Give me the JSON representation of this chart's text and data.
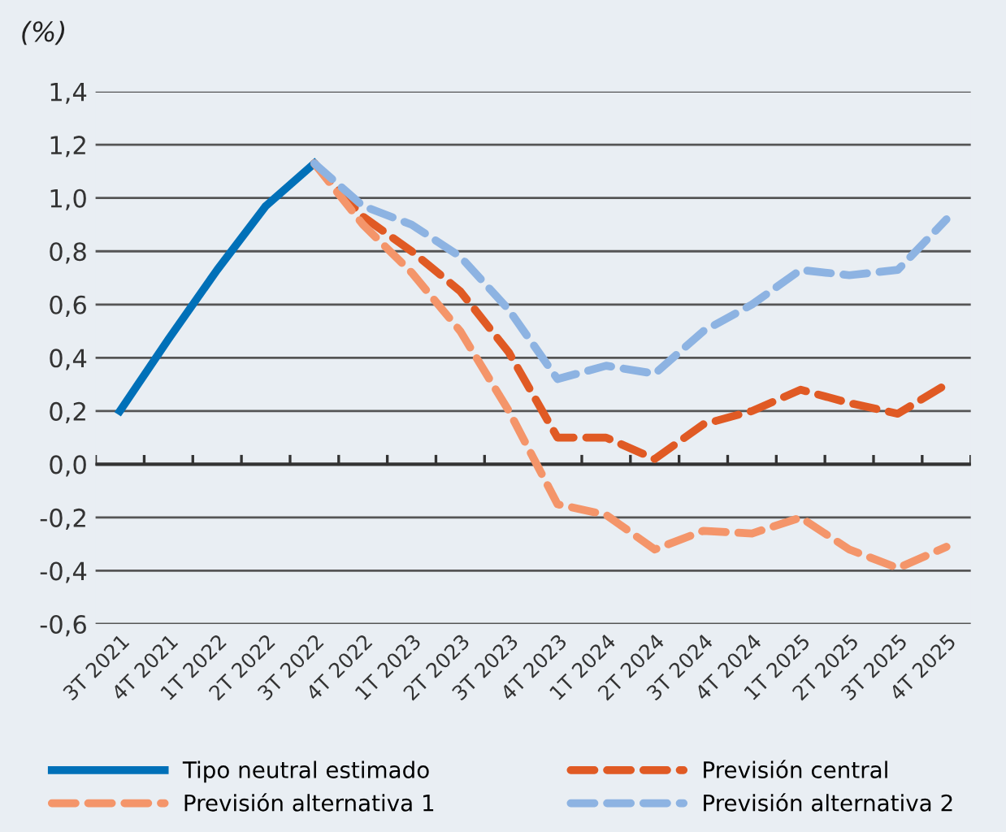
{
  "chart_data": {
    "type": "line",
    "ylabel": "(%)",
    "categories": [
      "3T 2021",
      "4T 2021",
      "1T 2022",
      "2T 2022",
      "3T 2022",
      "4T 2022",
      "1T 2023",
      "2T 2023",
      "3T 2023",
      "4T 2023",
      "1T 2024",
      "2T 2024",
      "3T 2024",
      "4T 2024",
      "1T 2025",
      "2T 2025",
      "3T 2025",
      "4T 2025"
    ],
    "series": [
      {
        "name": "Tipo neutral estimado",
        "color": "#0070b8",
        "line_style": "solid",
        "values": [
          0.2,
          0.47,
          0.73,
          0.97,
          1.13,
          null,
          null,
          null,
          null,
          null,
          null,
          null,
          null,
          null,
          null,
          null,
          null,
          null
        ]
      },
      {
        "name": "Previsión central",
        "color": "#e05a24",
        "line_style": "dashed",
        "values": [
          null,
          null,
          null,
          null,
          1.13,
          0.93,
          0.8,
          0.65,
          0.42,
          0.1,
          0.1,
          0.02,
          0.15,
          0.2,
          0.28,
          0.23,
          0.19,
          0.3
        ]
      },
      {
        "name": "Previsión alternativa 1",
        "color": "#f4956a",
        "line_style": "dashed",
        "values": [
          null,
          null,
          null,
          null,
          1.13,
          0.9,
          0.72,
          0.5,
          0.2,
          -0.15,
          -0.19,
          -0.32,
          -0.25,
          -0.26,
          -0.2,
          -0.32,
          -0.39,
          -0.31
        ]
      },
      {
        "name": "Previsión alternativa 2",
        "color": "#8db3e2",
        "line_style": "dashed",
        "values": [
          null,
          null,
          null,
          null,
          1.13,
          0.97,
          0.9,
          0.78,
          0.58,
          0.32,
          0.37,
          0.34,
          0.5,
          0.6,
          0.73,
          0.71,
          0.73,
          0.92
        ]
      }
    ],
    "ylim": [
      -0.6,
      1.4
    ],
    "yticks": [
      {
        "value": -0.6,
        "label": "-0,6"
      },
      {
        "value": -0.4,
        "label": "-0,4"
      },
      {
        "value": -0.2,
        "label": "-0,2"
      },
      {
        "value": 0,
        "label": "0,0"
      },
      {
        "value": 0.2,
        "label": "0,2"
      },
      {
        "value": 0.4,
        "label": "0,4"
      },
      {
        "value": 0.6,
        "label": "0,6"
      },
      {
        "value": 0.8,
        "label": "0,8"
      },
      {
        "value": 1.0,
        "label": "1,0"
      },
      {
        "value": 1.2,
        "label": "1,2"
      },
      {
        "value": 1.4,
        "label": "1,4"
      }
    ],
    "grid": "y",
    "legend": "bottom",
    "marker": "none"
  }
}
